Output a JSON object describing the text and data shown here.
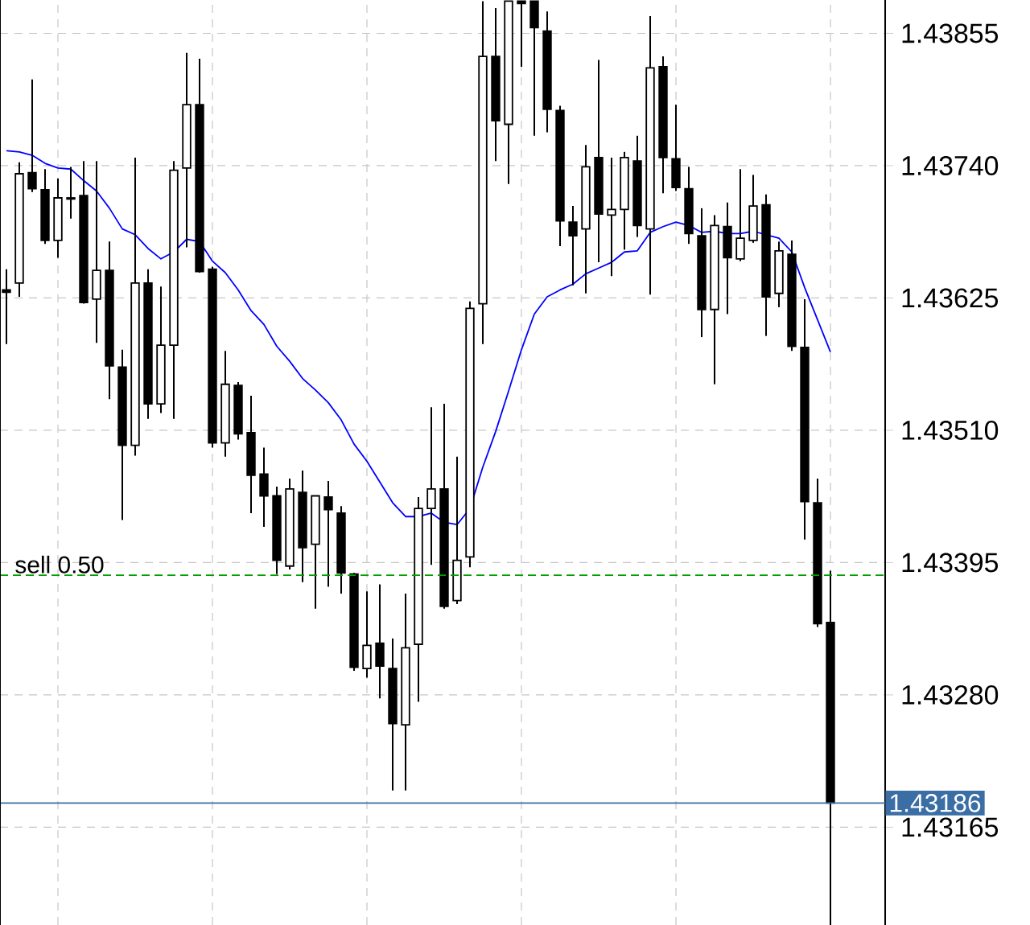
{
  "chart_data": {
    "type": "candlestick",
    "categories": [
      null,
      null,
      null,
      null,
      null,
      null,
      null,
      null,
      null,
      null,
      null,
      null,
      null,
      null,
      null,
      null,
      null,
      null,
      null,
      null,
      null,
      null,
      null,
      null,
      null,
      null,
      null,
      null,
      null,
      null,
      null,
      null,
      null,
      null,
      null,
      null,
      null,
      null,
      null,
      null,
      null,
      null,
      null,
      null,
      null,
      null,
      null,
      null,
      null,
      null,
      null,
      null,
      null,
      null,
      null,
      null,
      null,
      null,
      null,
      null,
      null,
      null,
      null,
      null,
      null
    ],
    "ohlc": [
      [
        1.43632,
        1.4365,
        1.43585,
        1.4363
      ],
      [
        1.43638,
        1.43743,
        1.43626,
        1.43733
      ],
      [
        1.43734,
        1.43815,
        1.43717,
        1.4372
      ],
      [
        1.43719,
        1.43737,
        1.43672,
        1.43675
      ],
      [
        1.43675,
        1.43729,
        1.4366,
        1.43712
      ],
      [
        1.43711,
        1.43739,
        1.43694,
        1.43712
      ],
      [
        1.43714,
        1.43744,
        1.4362,
        1.43621
      ],
      [
        1.43624,
        1.43744,
        1.43586,
        1.43649
      ],
      [
        1.43649,
        1.43674,
        1.43537,
        1.43566
      ],
      [
        1.43565,
        1.4358,
        1.43432,
        1.43497
      ],
      [
        1.43497,
        1.43747,
        1.43488,
        1.43638
      ],
      [
        1.43638,
        1.4365,
        1.4352,
        1.43533
      ],
      [
        1.43533,
        1.43635,
        1.43525,
        1.43584
      ],
      [
        1.43584,
        1.43744,
        1.4352,
        1.43736
      ],
      [
        1.43738,
        1.43838,
        1.43669,
        1.43793
      ],
      [
        1.43793,
        1.43833,
        1.43647,
        1.43648
      ],
      [
        1.4365,
        1.43652,
        1.43495,
        1.43499
      ],
      [
        1.43499,
        1.43579,
        1.43487,
        1.4355
      ],
      [
        1.43549,
        1.43552,
        1.43502,
        1.43507
      ],
      [
        1.43508,
        1.4354,
        1.43438,
        1.43471
      ],
      [
        1.43472,
        1.43495,
        1.43426,
        1.43453
      ],
      [
        1.43453,
        1.43461,
        1.43385,
        1.43397
      ],
      [
        1.43392,
        1.43468,
        1.43389,
        1.43459
      ],
      [
        1.43456,
        1.43475,
        1.43378,
        1.43408
      ],
      [
        1.43411,
        1.43453,
        1.43355,
        1.43453
      ],
      [
        1.43452,
        1.43466,
        1.43374,
        1.43441
      ],
      [
        1.43438,
        1.43444,
        1.43368,
        1.43386
      ],
      [
        1.43385,
        1.43386,
        1.43301,
        1.43304
      ],
      [
        1.43303,
        1.4337,
        1.43295,
        1.43323
      ],
      [
        1.43325,
        1.43376,
        1.43277,
        1.43305
      ],
      [
        1.43303,
        1.43329,
        1.43197,
        1.43255
      ],
      [
        1.43254,
        1.43368,
        1.43197,
        1.43321
      ],
      [
        1.43324,
        1.43452,
        1.43274,
        1.43442
      ],
      [
        1.43442,
        1.4353,
        1.43393,
        1.43459
      ],
      [
        1.43459,
        1.43533,
        1.43355,
        1.43357
      ],
      [
        1.43362,
        1.43487,
        1.43359,
        1.43397
      ],
      [
        1.434,
        1.43622,
        1.43391,
        1.43616
      ],
      [
        1.4362,
        1.43883,
        1.43585,
        1.43835
      ],
      [
        1.43835,
        1.43877,
        1.43744,
        1.43779
      ],
      [
        1.43776,
        1.43883,
        1.43724,
        1.43883
      ],
      [
        1.43883,
        1.43883,
        1.43826,
        1.43881
      ],
      [
        1.43883,
        1.43883,
        1.43766,
        1.4386
      ],
      [
        1.43857,
        1.43874,
        1.43769,
        1.43789
      ],
      [
        1.43788,
        1.43792,
        1.4367,
        1.43692
      ],
      [
        1.43691,
        1.43705,
        1.43636,
        1.43679
      ],
      [
        1.43685,
        1.43758,
        1.43629,
        1.43739
      ],
      [
        1.43747,
        1.43832,
        1.43656,
        1.43698
      ],
      [
        1.43697,
        1.43747,
        1.43644,
        1.43702
      ],
      [
        1.43702,
        1.43752,
        1.43667,
        1.43747
      ],
      [
        1.43744,
        1.43766,
        1.43678,
        1.43688
      ],
      [
        1.43685,
        1.4387,
        1.43628,
        1.43825
      ],
      [
        1.43826,
        1.43835,
        1.43716,
        1.43747
      ],
      [
        1.43746,
        1.43793,
        1.43718,
        1.43721
      ],
      [
        1.4372,
        1.43739,
        1.43672,
        1.43681
      ],
      [
        1.43679,
        1.43703,
        1.43591,
        1.43615
      ],
      [
        1.43615,
        1.43697,
        1.4355,
        1.43688
      ],
      [
        1.43687,
        1.43708,
        1.43611,
        1.4366
      ],
      [
        1.43659,
        1.43737,
        1.43657,
        1.43677
      ],
      [
        1.43675,
        1.43732,
        1.43673,
        1.43705
      ],
      [
        1.43706,
        1.43715,
        1.43592,
        1.43626
      ],
      [
        1.43629,
        1.43674,
        1.43617,
        1.43666
      ],
      [
        1.43663,
        1.43675,
        1.43579,
        1.43583
      ],
      [
        1.43582,
        1.43624,
        1.43415,
        1.43448
      ],
      [
        1.43447,
        1.43468,
        1.43339,
        1.43342
      ],
      [
        1.43343,
        1.43388,
        1.4308,
        1.43186
      ]
    ],
    "series": [
      {
        "type": "line",
        "color": "#0000ff",
        "values": [
          1.43753,
          1.43752,
          1.43749,
          1.43742,
          1.43738,
          1.43737,
          1.43727,
          1.43718,
          1.43703,
          1.43685,
          1.4368,
          1.43668,
          1.43659,
          1.43665,
          1.43676,
          1.43674,
          1.43657,
          1.43647,
          1.43632,
          1.43614,
          1.43602,
          1.43583,
          1.4357,
          1.43555,
          1.43545,
          1.43534,
          1.43519,
          1.43498,
          1.43483,
          1.43465,
          1.43447,
          1.43435,
          1.43435,
          1.43438,
          1.4343,
          1.43428,
          1.43442,
          1.43478,
          1.43509,
          1.43544,
          1.4358,
          1.43611,
          1.43626,
          1.43632,
          1.43637,
          1.43646,
          1.43651,
          1.43656,
          1.43665,
          1.43666,
          1.43682,
          1.43687,
          1.43691,
          1.43688,
          1.43682,
          1.43683,
          1.43681,
          1.43681,
          1.43683,
          1.4368,
          1.43677,
          1.43665,
          1.43634,
          1.43606,
          1.43578
        ]
      }
    ],
    "ylim": [
      1.4308,
      1.43884
    ],
    "yticks": [
      1.43165,
      {
        "value": 1.4328,
        "label": "1.43280"
      },
      1.43395,
      {
        "value": 1.4351,
        "label": "1.43510"
      },
      1.43625,
      {
        "value": 1.4374,
        "label": "1.43740"
      },
      1.43855
    ],
    "ref_lines": [
      {
        "axis": "y",
        "value": 1.43384,
        "label": "sell 0.50",
        "color": "#00a000",
        "line_style": "dashed"
      },
      {
        "axis": "y",
        "value": 1.43186,
        "label": "1.43186",
        "color": "#3a6ea5",
        "line_style": "solid"
      }
    ],
    "grid": true,
    "tick_labels": "y"
  }
}
